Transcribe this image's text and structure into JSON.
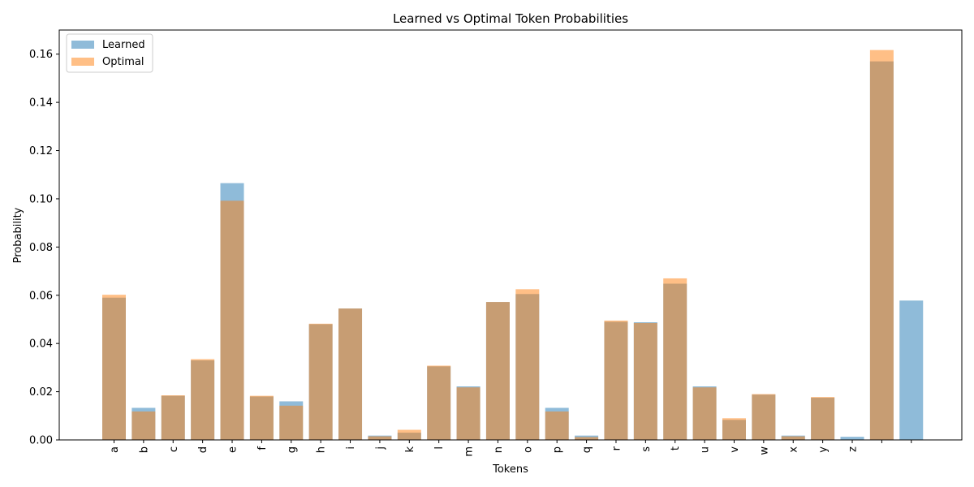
{
  "chart_data": {
    "type": "bar",
    "title": "Learned vs Optimal Token Probabilities",
    "xlabel": "Tokens",
    "ylabel": "Probability",
    "ylim": [
      0,
      0.17
    ],
    "yticks": [
      "0.00",
      "0.02",
      "0.04",
      "0.06",
      "0.08",
      "0.10",
      "0.12",
      "0.14",
      "0.16"
    ],
    "grid": false,
    "legend_position": "top-left",
    "overlay_alpha": 0.5,
    "categories": [
      "a",
      "b",
      "c",
      "d",
      "e",
      "f",
      "g",
      "h",
      "i",
      "j",
      "k",
      "l",
      "m",
      "n",
      "o",
      "p",
      "q",
      "r",
      "s",
      "t",
      "u",
      "v",
      "w",
      "x",
      "y",
      "z",
      " ",
      ""
    ],
    "series": [
      {
        "name": "Learned",
        "color": "#1f77b4",
        "values": [
          0.059,
          0.0133,
          0.0183,
          0.033,
          0.1065,
          0.018,
          0.016,
          0.048,
          0.0545,
          0.0018,
          0.003,
          0.0305,
          0.0222,
          0.0572,
          0.0605,
          0.0133,
          0.0018,
          0.049,
          0.0488,
          0.0648,
          0.0222,
          0.0083,
          0.0188,
          0.0018,
          0.0175,
          0.0013,
          0.157,
          0.0578
        ]
      },
      {
        "name": "Optimal",
        "color": "#ff7f0e",
        "values": [
          0.0602,
          0.0118,
          0.0185,
          0.0335,
          0.0992,
          0.0183,
          0.0142,
          0.0482,
          0.0545,
          0.0015,
          0.0042,
          0.0308,
          0.0218,
          0.0572,
          0.0625,
          0.0118,
          0.0012,
          0.0495,
          0.0485,
          0.067,
          0.0218,
          0.009,
          0.019,
          0.0015,
          0.0178,
          0.0,
          0.1617,
          0.0
        ]
      }
    ]
  }
}
